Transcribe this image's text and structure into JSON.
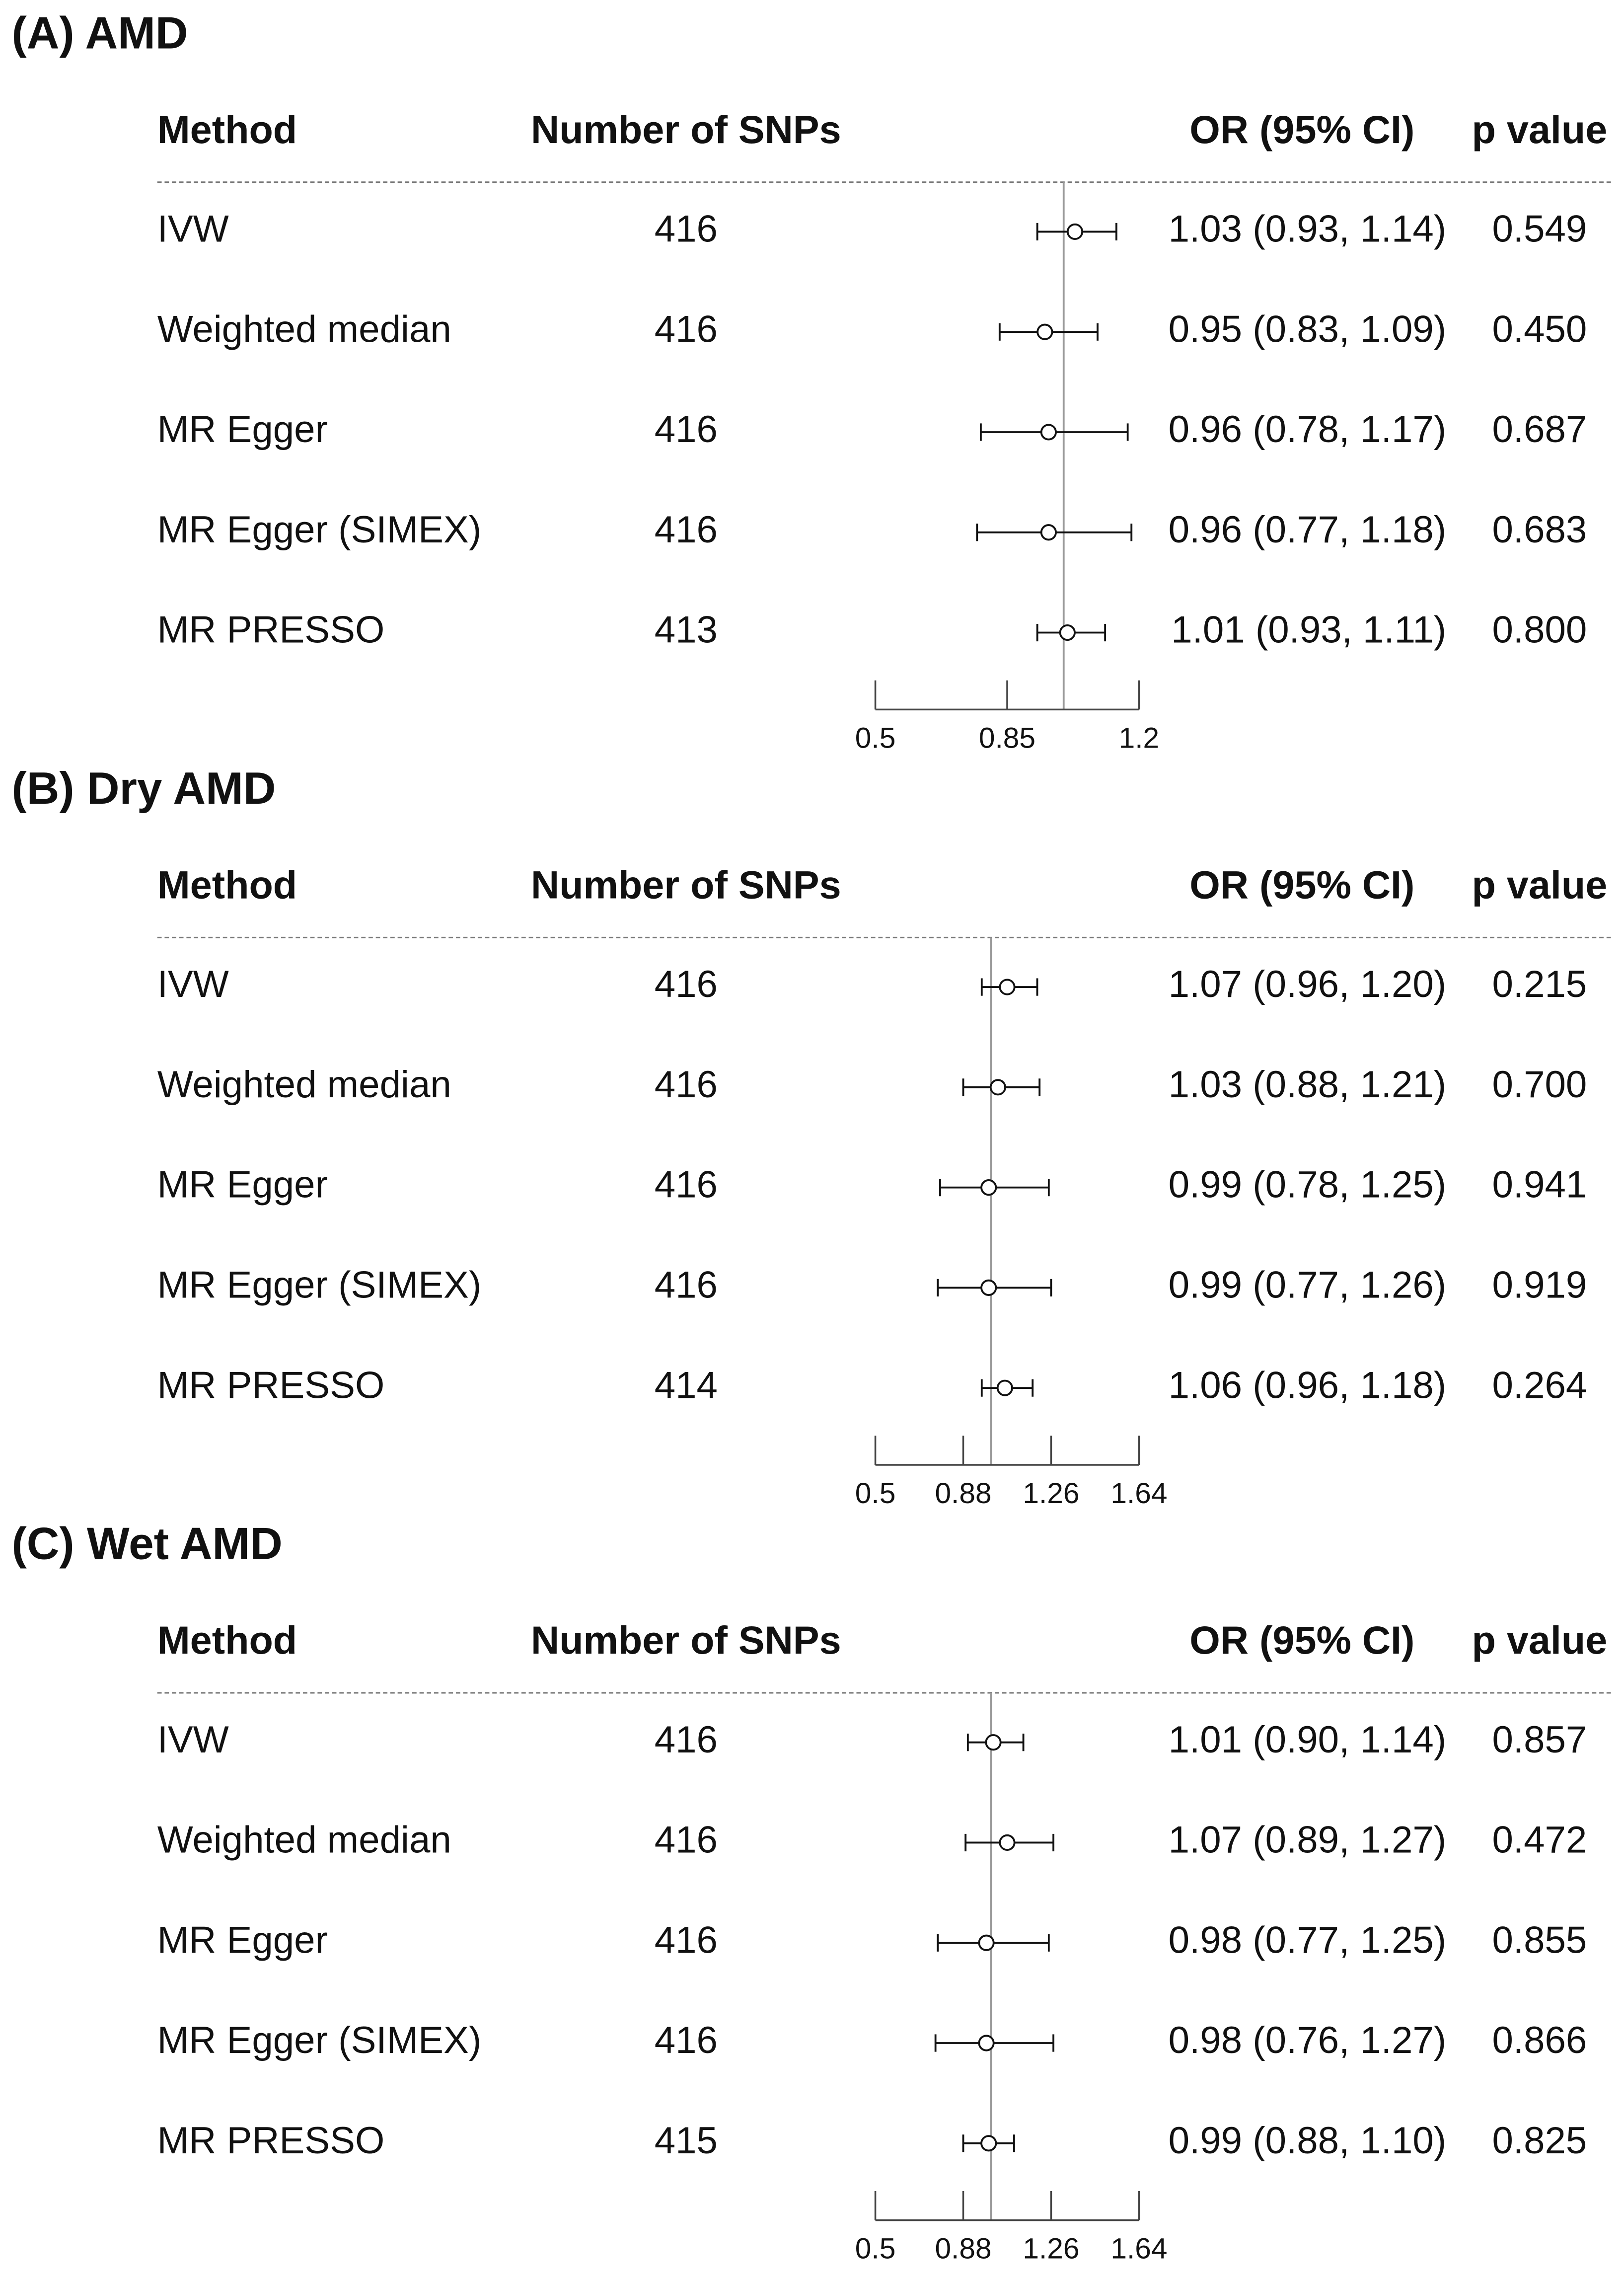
{
  "chart_data": [
    {
      "type": "forest",
      "title": "(A) AMD",
      "columns": [
        "Method",
        "Number of SNPs",
        "OR (95% CI)",
        "p value"
      ],
      "categories": [
        "IVW",
        "Weighted median",
        "MR Egger",
        "MR Egger (SIMEX)",
        "MR PRESSO"
      ],
      "snps": [
        416,
        416,
        416,
        416,
        413
      ],
      "values": [
        1.03,
        0.95,
        0.96,
        0.96,
        1.01
      ],
      "lower": [
        0.93,
        0.83,
        0.78,
        0.77,
        0.93
      ],
      "upper": [
        1.14,
        1.09,
        1.17,
        1.18,
        1.11
      ],
      "value_labels": [
        "1.03 (0.93, 1.14)",
        "0.95 (0.83, 1.09)",
        "0.96 (0.78, 1.17)",
        "0.96 (0.77, 1.18)",
        "1.01 (0.93, 1.11)"
      ],
      "p_values": [
        "0.549",
        "0.450",
        "0.687",
        "0.683",
        "0.800"
      ],
      "xlim": [
        0.5,
        1.2
      ],
      "xticks": [
        0.5,
        0.85,
        1.2
      ],
      "reference": 1
    },
    {
      "type": "forest",
      "title": "(B) Dry AMD",
      "columns": [
        "Method",
        "Number of SNPs",
        "OR (95% CI)",
        "p value"
      ],
      "categories": [
        "IVW",
        "Weighted median",
        "MR Egger",
        "MR Egger (SIMEX)",
        "MR PRESSO"
      ],
      "snps": [
        416,
        416,
        416,
        416,
        414
      ],
      "values": [
        1.07,
        1.03,
        0.99,
        0.99,
        1.06
      ],
      "lower": [
        0.96,
        0.88,
        0.78,
        0.77,
        0.96
      ],
      "upper": [
        1.2,
        1.21,
        1.25,
        1.26,
        1.18
      ],
      "value_labels": [
        "1.07 (0.96, 1.20)",
        "1.03 (0.88, 1.21)",
        "0.99 (0.78, 1.25)",
        "0.99 (0.77, 1.26)",
        "1.06 (0.96, 1.18)"
      ],
      "p_values": [
        "0.215",
        "0.700",
        "0.941",
        "0.919",
        "0.264"
      ],
      "xlim": [
        0.5,
        1.64
      ],
      "xticks": [
        0.5,
        0.88,
        1.26,
        1.64
      ],
      "reference": 1
    },
    {
      "type": "forest",
      "title": "(C) Wet AMD",
      "columns": [
        "Method",
        "Number of SNPs",
        "OR (95% CI)",
        "p value"
      ],
      "categories": [
        "IVW",
        "Weighted median",
        "MR Egger",
        "MR Egger (SIMEX)",
        "MR PRESSO"
      ],
      "snps": [
        416,
        416,
        416,
        416,
        415
      ],
      "values": [
        1.01,
        1.07,
        0.98,
        0.98,
        0.99
      ],
      "lower": [
        0.9,
        0.89,
        0.77,
        0.76,
        0.88
      ],
      "upper": [
        1.14,
        1.27,
        1.25,
        1.27,
        1.1
      ],
      "value_labels": [
        "1.01 (0.90, 1.14)",
        "1.07 (0.89, 1.27)",
        "0.98 (0.77, 1.25)",
        "0.98 (0.76, 1.27)",
        "0.99 (0.88, 1.10)"
      ],
      "p_values": [
        "0.857",
        "0.472",
        "0.855",
        "0.866",
        "0.825"
      ],
      "xlim": [
        0.5,
        1.64
      ],
      "xticks": [
        0.5,
        0.88,
        1.26,
        1.64
      ],
      "reference": 1
    }
  ]
}
